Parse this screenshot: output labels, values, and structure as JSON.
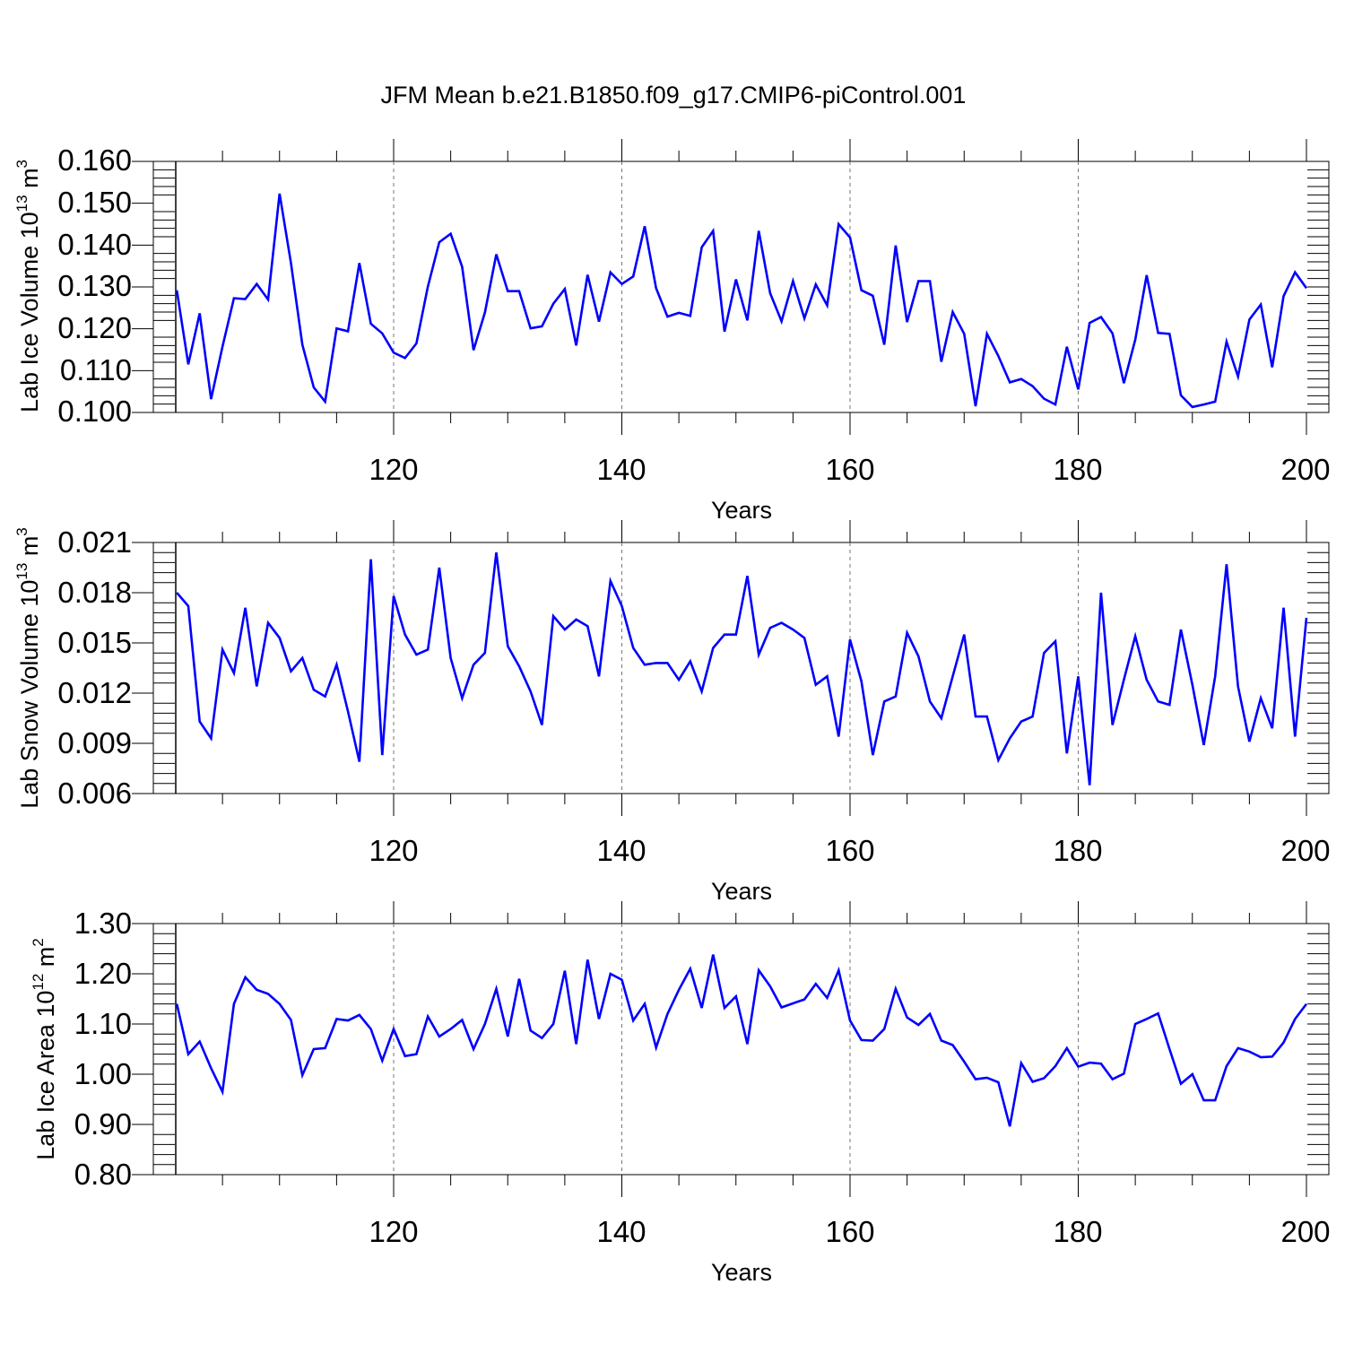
{
  "figure": {
    "title": "JFM Mean b.e21.B1850.f09_g17.CMIP6-piControl.001"
  },
  "chart_data": [
    {
      "type": "line",
      "xlabel": "Years",
      "ylabel": {
        "text": "Lab Ice Volume 10",
        "exp": "13",
        "unit": " m",
        "unit_exp": "3"
      },
      "xlim": [
        101,
        200
      ],
      "ylim": [
        0.1,
        0.16
      ],
      "xticks": [
        "120",
        "140",
        "160",
        "180",
        "200"
      ],
      "yticks": [
        "0.100",
        "0.110",
        "0.120",
        "0.130",
        "0.140",
        "0.150",
        "0.160"
      ],
      "line_color": "#0000ff",
      "grid": "vertical dashed at major x ticks",
      "series": [
        {
          "name": "Lab Ice Volume",
          "x_start": 101,
          "values": [
            0.1292,
            0.1115,
            0.1237,
            0.1032,
            0.1157,
            0.1273,
            0.1271,
            0.1307,
            0.127,
            0.1523,
            0.1357,
            0.1162,
            0.106,
            0.1026,
            0.1201,
            0.1194,
            0.1357,
            0.1212,
            0.1189,
            0.1143,
            0.113,
            0.1165,
            0.1301,
            0.1407,
            0.1427,
            0.1348,
            0.1149,
            0.1239,
            0.1378,
            0.129,
            0.129,
            0.1201,
            0.1206,
            0.126,
            0.1295,
            0.116,
            0.1329,
            0.1217,
            0.1335,
            0.1307,
            0.1325,
            0.1445,
            0.1297,
            0.1229,
            0.1238,
            0.1231,
            0.1395,
            0.1434,
            0.1193,
            0.1318,
            0.122,
            0.1434,
            0.1285,
            0.1218,
            0.1314,
            0.1225,
            0.1306,
            0.1256,
            0.145,
            0.1418,
            0.1292,
            0.1279,
            0.1162,
            0.1399,
            0.1216,
            0.1314,
            0.1314,
            0.1121,
            0.124,
            0.1188,
            0.1015,
            0.1188,
            0.1135,
            0.1072,
            0.108,
            0.1063,
            0.1033,
            0.1019,
            0.1157,
            0.1055,
            0.1214,
            0.1228,
            0.1189,
            0.107,
            0.1174,
            0.1328,
            0.119,
            0.1188,
            0.1041,
            0.1013,
            0.1019,
            0.1026,
            0.1169,
            0.1086,
            0.1222,
            0.1258,
            0.1108,
            0.1278,
            0.1335,
            0.1297
          ]
        }
      ]
    },
    {
      "type": "line",
      "xlabel": "Years",
      "ylabel": {
        "text": "Lab Snow Volume 10",
        "exp": "13",
        "unit": " m",
        "unit_exp": "3"
      },
      "xlim": [
        101,
        200
      ],
      "ylim": [
        0.006,
        0.021
      ],
      "xticks": [
        "120",
        "140",
        "160",
        "180",
        "200"
      ],
      "yticks": [
        "0.006",
        "0.009",
        "0.012",
        "0.015",
        "0.018",
        "0.021"
      ],
      "line_color": "#0000ff",
      "grid": "vertical dashed at major x ticks",
      "series": [
        {
          "name": "Lab Snow Volume",
          "x_start": 101,
          "values": [
            0.018,
            0.0172,
            0.0103,
            0.0093,
            0.0146,
            0.0132,
            0.0171,
            0.0124,
            0.0162,
            0.0153,
            0.0133,
            0.0141,
            0.0122,
            0.0118,
            0.0137,
            0.0109,
            0.0079,
            0.02,
            0.0083,
            0.0178,
            0.0155,
            0.0143,
            0.0146,
            0.0195,
            0.0141,
            0.0117,
            0.0137,
            0.0144,
            0.0204,
            0.0148,
            0.0136,
            0.0121,
            0.0101,
            0.0166,
            0.0158,
            0.0164,
            0.016,
            0.013,
            0.0187,
            0.0172,
            0.0147,
            0.0137,
            0.0138,
            0.0138,
            0.0128,
            0.0139,
            0.0121,
            0.0147,
            0.0155,
            0.0155,
            0.019,
            0.0143,
            0.0159,
            0.0162,
            0.0158,
            0.0153,
            0.0125,
            0.013,
            0.0094,
            0.0152,
            0.0127,
            0.0083,
            0.0115,
            0.0118,
            0.0156,
            0.0142,
            0.0115,
            0.0105,
            0.013,
            0.0155,
            0.0106,
            0.0106,
            0.008,
            0.0093,
            0.0103,
            0.0106,
            0.0144,
            0.0151,
            0.0084,
            0.013,
            0.0065,
            0.018,
            0.0101,
            0.0128,
            0.0154,
            0.0128,
            0.0115,
            0.0113,
            0.0158,
            0.0125,
            0.0089,
            0.013,
            0.0197,
            0.0124,
            0.0091,
            0.0117,
            0.0099,
            0.0171,
            0.0094,
            0.0165
          ]
        }
      ]
    },
    {
      "type": "line",
      "xlabel": "Years",
      "ylabel": {
        "text": "Lab Ice Area 10",
        "exp": "12",
        "unit": " m",
        "unit_exp": "2"
      },
      "xlim": [
        101,
        200
      ],
      "ylim": [
        0.8,
        1.3
      ],
      "xticks": [
        "120",
        "140",
        "160",
        "180",
        "200"
      ],
      "yticks": [
        "0.80",
        "0.90",
        "1.00",
        "1.10",
        "1.20",
        "1.30"
      ],
      "line_color": "#0000ff",
      "grid": "vertical dashed at major x ticks",
      "series": [
        {
          "name": "Lab Ice Area",
          "x_start": 101,
          "values": [
            1.14,
            1.04,
            1.065,
            1.012,
            0.965,
            1.14,
            1.193,
            1.168,
            1.16,
            1.14,
            1.108,
            0.998,
            1.05,
            1.052,
            1.11,
            1.107,
            1.118,
            1.09,
            1.027,
            1.09,
            1.036,
            1.04,
            1.115,
            1.075,
            1.09,
            1.108,
            1.05,
            1.1,
            1.17,
            1.075,
            1.19,
            1.087,
            1.072,
            1.1,
            1.206,
            1.06,
            1.228,
            1.11,
            1.2,
            1.188,
            1.107,
            1.14,
            1.053,
            1.12,
            1.168,
            1.21,
            1.132,
            1.238,
            1.132,
            1.155,
            1.06,
            1.207,
            1.175,
            1.133,
            1.141,
            1.149,
            1.18,
            1.152,
            1.207,
            1.107,
            1.068,
            1.067,
            1.09,
            1.17,
            1.113,
            1.098,
            1.12,
            1.067,
            1.058,
            1.025,
            0.99,
            0.993,
            0.984,
            0.896,
            1.022,
            0.985,
            0.992,
            1.016,
            1.052,
            1.015,
            1.023,
            1.021,
            0.99,
            1.001,
            1.1,
            1.11,
            1.121,
            1.05,
            0.981,
            1.0,
            0.948,
            0.948,
            1.016,
            1.052,
            1.045,
            1.034,
            1.035,
            1.063,
            1.11,
            1.14
          ]
        }
      ]
    }
  ]
}
